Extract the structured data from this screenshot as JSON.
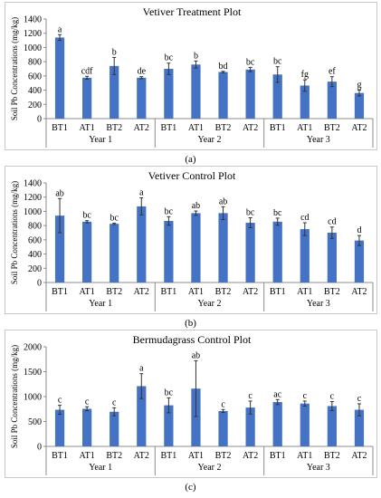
{
  "chart_data": [
    {
      "type": "bar",
      "title": "Vetiver Treatment Plot",
      "ylabel": "Soil Pb Concentrations (mg/kg)",
      "ylim": [
        0,
        1400
      ],
      "yticks": [
        0,
        200,
        400,
        600,
        800,
        1000,
        1200,
        1400
      ],
      "categories": [
        "BT1",
        "AT1",
        "BT2",
        "AT2",
        "BT1",
        "AT1",
        "BT2",
        "AT2",
        "BT1",
        "AT1",
        "BT2",
        "AT2"
      ],
      "groups": [
        "Year 1",
        "Year 2",
        "Year 3"
      ],
      "values": [
        1140,
        575,
        740,
        575,
        700,
        760,
        655,
        690,
        620,
        465,
        520,
        360
      ],
      "errors": [
        40,
        20,
        120,
        15,
        80,
        50,
        10,
        30,
        110,
        80,
        70,
        40
      ],
      "letters": [
        "a",
        "cdf",
        "b",
        "de",
        "bc",
        "b",
        "bd",
        "bc",
        "bc",
        "fg",
        "ef",
        "g"
      ],
      "bar_color": "#4472c4",
      "grid": false,
      "legend": "none"
    },
    {
      "type": "bar",
      "title": "Vetiver Control Plot",
      "ylabel": "Soil Pb Concentrations (mg/kg)",
      "ylim": [
        0,
        1400
      ],
      "yticks": [
        0,
        200,
        400,
        600,
        800,
        1000,
        1200,
        1400
      ],
      "categories": [
        "BT1",
        "AT1",
        "BT2",
        "AT2",
        "BT1",
        "AT1",
        "BT2",
        "AT2",
        "BT1",
        "AT1",
        "BT2",
        "AT2"
      ],
      "groups": [
        "Year 1",
        "Year 2",
        "Year 3"
      ],
      "values": [
        940,
        855,
        825,
        1070,
        865,
        975,
        975,
        840,
        855,
        750,
        700,
        590
      ],
      "errors": [
        240,
        15,
        10,
        120,
        60,
        30,
        90,
        70,
        50,
        90,
        80,
        70
      ],
      "letters": [
        "ab",
        "bc",
        "bc",
        "a",
        "bc",
        "ab",
        "ab",
        "bc",
        "bc",
        "cd",
        "cd",
        "d"
      ],
      "bar_color": "#4472c4",
      "grid": false,
      "legend": "none"
    },
    {
      "type": "bar",
      "title": "Bermudagrass Control Plot",
      "ylabel": "Soil Pb Concentrations (mg/kg)",
      "ylim": [
        0,
        2000
      ],
      "yticks": [
        0,
        500,
        1000,
        1500,
        2000
      ],
      "categories": [
        "BT1",
        "AT1",
        "BT2",
        "AT2",
        "BT1",
        "AT1",
        "BT2",
        "AT2",
        "BT1",
        "AT1",
        "BT2",
        "AT2"
      ],
      "groups": [
        "Year 1",
        "Year 2",
        "Year 3"
      ],
      "values": [
        735,
        755,
        695,
        1210,
        825,
        1160,
        710,
        780,
        890,
        860,
        810,
        735
      ],
      "errors": [
        90,
        40,
        80,
        250,
        150,
        560,
        30,
        130,
        50,
        50,
        90,
        120
      ],
      "letters": [
        "c",
        "c",
        "c",
        "a",
        "bc",
        "ab",
        "c",
        "c",
        "ac",
        "c",
        "c",
        "c"
      ],
      "bar_color": "#4472c4",
      "grid": false,
      "legend": "none"
    }
  ],
  "captions": [
    "(a)",
    "(b)",
    "(c)"
  ]
}
